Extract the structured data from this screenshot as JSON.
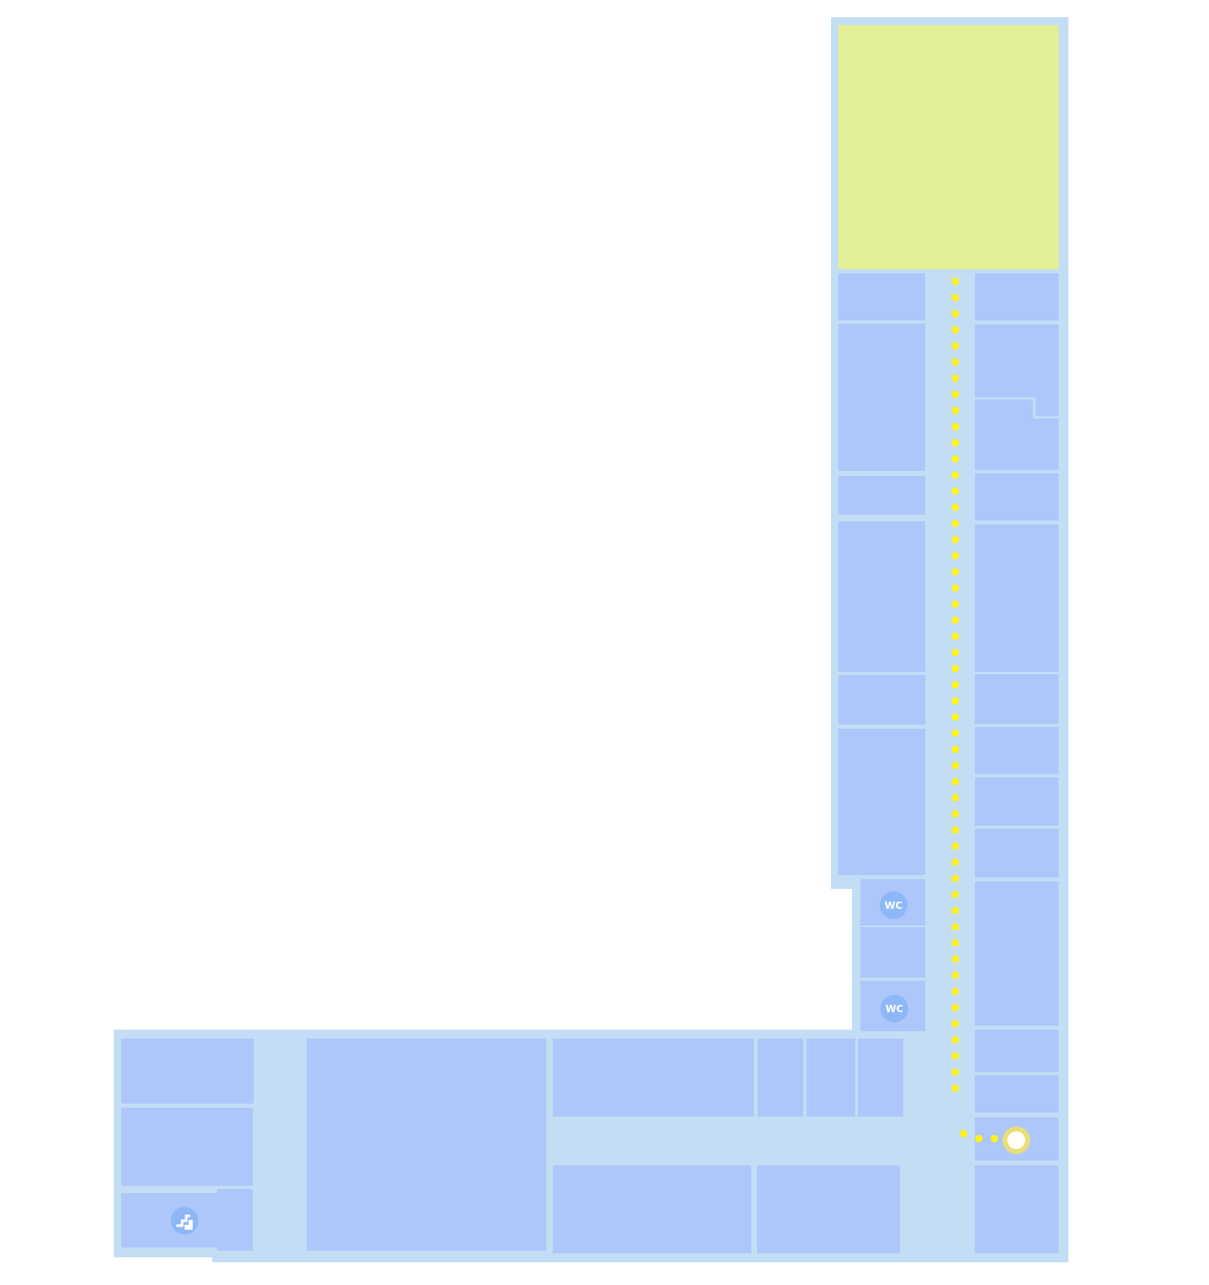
{
  "map": {
    "colors": {
      "background": "#ffffff",
      "floor": "#c3def4",
      "room": "#adc7fb",
      "destination": "#e3f096",
      "route": "#fff11c",
      "marker": "#fffdf5",
      "marker_ring": "#e9de78",
      "icon_bg": "#8db7f7"
    },
    "route_dots": 54,
    "icons": {
      "restroom_1": {
        "label": "WC",
        "icon": "restroom-icon"
      },
      "restroom_2": {
        "label": "WC",
        "icon": "restroom-icon"
      },
      "stairs": {
        "icon": "stairs-icon"
      },
      "current_location": {
        "icon": "location-marker-icon"
      }
    }
  }
}
